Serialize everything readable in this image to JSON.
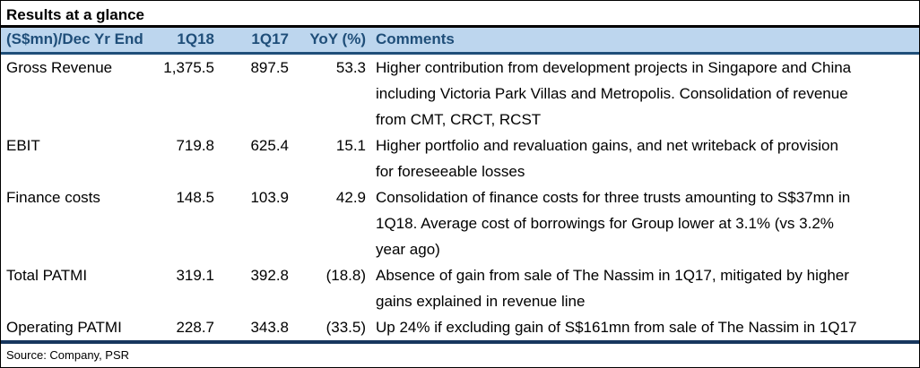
{
  "title": "Results at a glance",
  "table": {
    "columns": [
      "(S$mn)/Dec Yr End",
      "1Q18",
      "1Q17",
      "YoY (%)",
      "Comments"
    ],
    "rows": [
      {
        "metric": "Gross Revenue",
        "q18": "1,375.5",
        "q17": "897.5",
        "yoy": "53.3",
        "comment": [
          "Higher contribution from development projects in Singapore and China",
          "including Victoria Park Villas and Metropolis. Consolidation of revenue",
          "from CMT, CRCT, RCST"
        ]
      },
      {
        "metric": "EBIT",
        "q18": "719.8",
        "q17": "625.4",
        "yoy": "15.1",
        "comment": [
          "Higher portfolio and revaluation gains, and net writeback of provision",
          "for foreseeable losses"
        ]
      },
      {
        "metric": "Finance costs",
        "q18": "148.5",
        "q17": "103.9",
        "yoy": "42.9",
        "comment": [
          "Consolidation of finance costs for three trusts amounting to S$37mn in",
          "1Q18. Average cost of borrowings for Group lower at 3.1% (vs 3.2%",
          "year ago)"
        ]
      },
      {
        "metric": "Total PATMI",
        "q18": "319.1",
        "q17": "392.8",
        "yoy": "(18.8)",
        "comment": [
          "Absence of gain from sale of The Nassim in 1Q17, mitigated by higher",
          "gains explained in revenue line"
        ]
      },
      {
        "metric": "Operating PATMI",
        "q18": "228.7",
        "q17": "343.8",
        "yoy": "(33.5)",
        "comment": [
          "Up 24% if excluding gain of S$161mn from sale of The Nassim in 1Q17"
        ]
      }
    ]
  },
  "source": "Source: Company, PSR",
  "colors": {
    "header_bg": "#BDD6EE",
    "header_text": "#1F4E79",
    "header_border": "#1F4E79",
    "footer_border": "#17375E",
    "frame": "#000000"
  }
}
